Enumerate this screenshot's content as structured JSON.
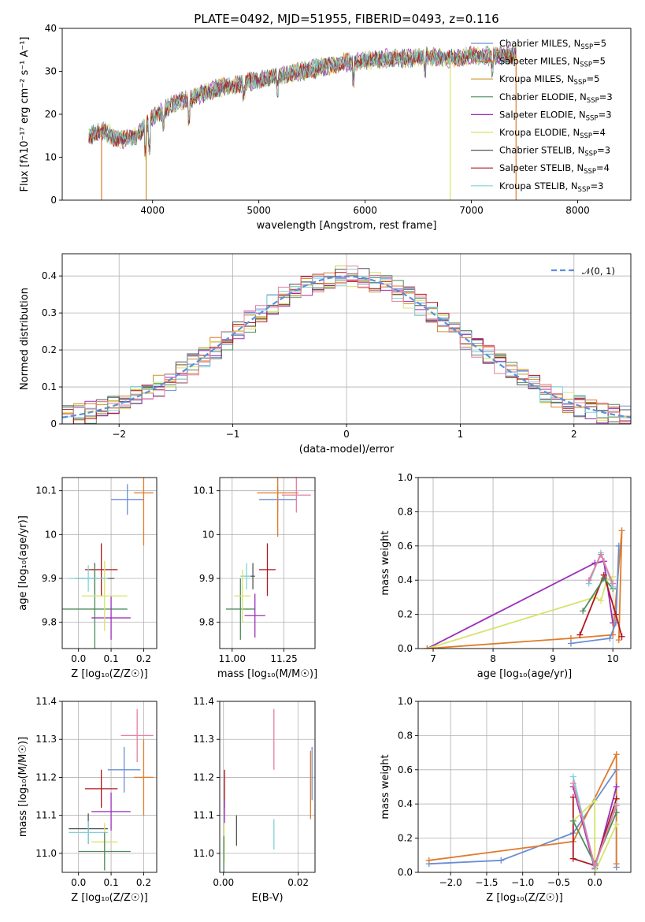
{
  "title": "PLATE=0492, MJD=51955, FIBERID=0493, z=0.116",
  "colors": {
    "Chabrier MILES": "#6a8fd6",
    "Salpeter MILES": "#e07b2a",
    "Kroupa MILES": "#c9942a",
    "Chabrier ELODIE": "#4f8c5c",
    "Salpeter ELODIE": "#9b2fb8",
    "Kroupa ELODIE": "#d7e36a",
    "Chabrier STELIB": "#555555",
    "Salpeter STELIB": "#b0171f",
    "Kroupa STELIB": "#7fd3d6",
    "pink": "#e57fa5"
  },
  "chart_data": [
    {
      "type": "line",
      "id": "spectrum",
      "xlabel": "wavelength [Angstrom, rest frame]",
      "ylabel": "Flux [fλ10⁻¹⁷ erg cm⁻² s⁻¹ A⁻¹]",
      "xlim": [
        3150,
        8500
      ],
      "ylim": [
        0,
        40
      ],
      "xticks": [
        4000,
        5000,
        6000,
        7000,
        8000
      ],
      "yticks": [
        0,
        10,
        20,
        30,
        40
      ],
      "legend": "top-right",
      "legend_entries": [
        {
          "name": "Chabrier MILES",
          "nssp": "5"
        },
        {
          "name": "Salpeter MILES",
          "nssp": "5"
        },
        {
          "name": "Kroupa MILES",
          "nssp": "5"
        },
        {
          "name": "Chabrier ELODIE",
          "nssp": "3"
        },
        {
          "name": "Salpeter ELODIE",
          "nssp": "3"
        },
        {
          "name": "Kroupa ELODIE",
          "nssp": "4"
        },
        {
          "name": "Chabrier STELIB",
          "nssp": "3"
        },
        {
          "name": "Salpeter STELIB",
          "nssp": "4"
        },
        {
          "name": "Kroupa STELIB",
          "nssp": "3"
        }
      ],
      "continuum": [
        [
          3400,
          15
        ],
        [
          3550,
          16
        ],
        [
          3700,
          14
        ],
        [
          3850,
          15
        ],
        [
          3950,
          18
        ],
        [
          4100,
          21
        ],
        [
          4250,
          23
        ],
        [
          4400,
          24
        ],
        [
          4600,
          26
        ],
        [
          4800,
          27
        ],
        [
          5000,
          28
        ],
        [
          5200,
          29
        ],
        [
          5400,
          30
        ],
        [
          5600,
          31
        ],
        [
          5800,
          32
        ],
        [
          6000,
          32.5
        ],
        [
          6200,
          33
        ],
        [
          6400,
          33
        ],
        [
          6600,
          33.5
        ],
        [
          6800,
          33
        ],
        [
          7000,
          33.5
        ],
        [
          7200,
          33.5
        ],
        [
          7400,
          34
        ]
      ],
      "drops": [
        [
          3520,
          0
        ],
        [
          3940,
          0
        ],
        [
          6800,
          0
        ],
        [
          7420,
          0
        ]
      ]
    },
    {
      "type": "histogram",
      "id": "residuals",
      "xlabel": "(data-model)/error",
      "ylabel": "Normed distribution",
      "xlim": [
        -2.5,
        2.5
      ],
      "ylim": [
        0,
        0.46
      ],
      "xticks": [
        -2,
        -1,
        0,
        1,
        2
      ],
      "yticks": [
        0,
        0.1,
        0.2,
        0.3,
        0.4
      ],
      "legend": "top-right",
      "normal_label": "𝒩(0, 1)",
      "bin_width": 0.1
    },
    {
      "type": "scatter",
      "id": "age-vs-z",
      "xlabel": "Z [log₁₀(Z/Z☉)]",
      "ylabel": "age  [log₁₀(age/yr)]",
      "xlim": [
        -0.05,
        0.24
      ],
      "ylim": [
        9.74,
        10.13
      ],
      "xticks": [
        0,
        0.1,
        0.2
      ],
      "xticklabels": [
        "0.0",
        "0.1",
        "0.2"
      ],
      "yticks": [
        9.8,
        9.9,
        10.0,
        10.1
      ],
      "points": [
        {
          "model": "Chabrier MILES",
          "x": 0.15,
          "y": 10.08,
          "xerr": 0.05,
          "yerr": 0.035
        },
        {
          "model": "Salpeter MILES",
          "x": 0.2,
          "y": 10.095,
          "xerr": 0.03,
          "yerr": 0.12
        },
        {
          "model": "Chabrier STELIB",
          "x": 0.05,
          "y": 9.9,
          "xerr": 0.06,
          "yerr": 0.035
        },
        {
          "model": "Salpeter STELIB",
          "x": 0.07,
          "y": 9.92,
          "xerr": 0.05,
          "yerr": 0.06
        },
        {
          "model": "Chabrier ELODIE",
          "x": 0.05,
          "y": 9.83,
          "xerr": 0.1,
          "yerr": 0.1
        },
        {
          "model": "Salpeter ELODIE",
          "x": 0.1,
          "y": 9.81,
          "xerr": 0.06,
          "yerr": 0.05
        },
        {
          "model": "Kroupa ELODIE",
          "x": 0.08,
          "y": 9.86,
          "xerr": 0.07,
          "yerr": 0.08
        },
        {
          "model": "Kroupa STELIB",
          "x": 0.03,
          "y": 9.9,
          "xerr": 0.06,
          "yerr": 0.03
        }
      ]
    },
    {
      "type": "scatter",
      "id": "age-vs-mass",
      "xlabel": "mass [log₁₀(M/M☉)]",
      "ylabel": "",
      "xlim": [
        10.94,
        11.4
      ],
      "ylim": [
        9.74,
        10.13
      ],
      "xticks": [
        11.0,
        11.25
      ],
      "xticklabels": [
        "11.00",
        "11.25"
      ],
      "yticks": [
        9.8,
        9.9,
        10.0,
        10.1
      ],
      "points": [
        {
          "model": "Chabrier MILES",
          "x": 11.22,
          "y": 10.08,
          "xerr": 0.09,
          "yerr": 0.03
        },
        {
          "model": "Salpeter MILES",
          "x": 11.22,
          "y": 10.095,
          "xerr": 0.1,
          "yerr": 0.1
        },
        {
          "model": "pink",
          "x": 11.31,
          "y": 10.09,
          "xerr": 0.07,
          "yerr": 0.04
        },
        {
          "model": "Salpeter STELIB",
          "x": 11.17,
          "y": 9.92,
          "xerr": 0.04,
          "yerr": 0.06
        },
        {
          "model": "Kroupa STELIB",
          "x": 11.07,
          "y": 9.905,
          "xerr": 0.03,
          "yerr": 0.03
        },
        {
          "model": "Chabrier ELODIE",
          "x": 11.04,
          "y": 9.83,
          "xerr": 0.07,
          "yerr": 0.07
        },
        {
          "model": "Salpeter ELODIE",
          "x": 11.11,
          "y": 9.815,
          "xerr": 0.05,
          "yerr": 0.05
        },
        {
          "model": "Kroupa ELODIE",
          "x": 11.05,
          "y": 9.86,
          "xerr": 0.04,
          "yerr": 0.06
        },
        {
          "model": "Chabrier STELIB",
          "x": 11.1,
          "y": 9.905,
          "xerr": 0.01,
          "yerr": 0.03
        }
      ]
    },
    {
      "type": "line",
      "id": "weight-vs-age",
      "xlabel": "age  [log₁₀(age/yr)]",
      "ylabel": "mass weight",
      "xlim": [
        6.75,
        10.3
      ],
      "ylim": [
        0,
        1
      ],
      "xticks": [
        7,
        8,
        9,
        10
      ],
      "yticks": [
        0,
        0.2,
        0.4,
        0.6,
        0.8,
        1.0
      ],
      "yticklabels": [
        "0.0",
        "0.2",
        "0.4",
        "0.6",
        "0.8",
        "1.0"
      ],
      "series": [
        {
          "model": "Salpeter ELODIE",
          "points": [
            [
              6.9,
              0.0
            ],
            [
              9.7,
              0.5
            ],
            [
              9.85,
              0.51
            ],
            [
              10.0,
              0.15
            ]
          ]
        },
        {
          "model": "Kroupa ELODIE",
          "points": [
            [
              6.9,
              0.0
            ],
            [
              9.7,
              0.3
            ],
            [
              9.8,
              0.28
            ],
            [
              9.9,
              0.4
            ],
            [
              10.0,
              0.42
            ]
          ]
        },
        {
          "model": "Salpeter MILES",
          "points": [
            [
              6.9,
              0.0
            ],
            [
              9.3,
              0.06
            ],
            [
              10.0,
              0.08
            ],
            [
              10.15,
              0.69
            ],
            [
              10.1,
              0.05
            ]
          ]
        },
        {
          "model": "Chabrier MILES",
          "points": [
            [
              9.3,
              0.03
            ],
            [
              9.95,
              0.06
            ],
            [
              10.05,
              0.15
            ],
            [
              10.1,
              0.6
            ]
          ]
        },
        {
          "model": "Salpeter STELIB",
          "points": [
            [
              9.45,
              0.08
            ],
            [
              9.85,
              0.43
            ],
            [
              10.05,
              0.2
            ],
            [
              10.15,
              0.07
            ]
          ]
        },
        {
          "model": "Chabrier ELODIE",
          "points": [
            [
              9.5,
              0.22
            ],
            [
              9.85,
              0.41
            ],
            [
              10.0,
              0.35
            ]
          ]
        },
        {
          "model": "Kroupa STELIB",
          "points": [
            [
              9.6,
              0.38
            ],
            [
              9.8,
              0.56
            ],
            [
              10.0,
              0.36
            ]
          ]
        },
        {
          "model": "pink",
          "points": [
            [
              9.6,
              0.4
            ],
            [
              9.8,
              0.55
            ],
            [
              10.0,
              0.38
            ]
          ]
        }
      ]
    },
    {
      "type": "scatter",
      "id": "mass-vs-z",
      "xlabel": "Z [log₁₀(Z/Z☉)]",
      "ylabel": "mass [log₁₀(M/M☉)]",
      "xlim": [
        -0.05,
        0.24
      ],
      "ylim": [
        10.95,
        11.4
      ],
      "xticks": [
        0,
        0.1,
        0.2
      ],
      "xticklabels": [
        "0.0",
        "0.1",
        "0.2"
      ],
      "yticks": [
        11.0,
        11.1,
        11.2,
        11.3,
        11.4
      ],
      "yticklabels": [
        "11.0",
        "11.1",
        "11.2",
        "11.3",
        "11.4"
      ],
      "points": [
        {
          "model": "pink",
          "x": 0.18,
          "y": 11.31,
          "xerr": 0.05,
          "yerr": 0.07
        },
        {
          "model": "Chabrier MILES",
          "x": 0.14,
          "y": 11.22,
          "xerr": 0.05,
          "yerr": 0.06
        },
        {
          "model": "Salpeter MILES",
          "x": 0.2,
          "y": 11.2,
          "xerr": 0.03,
          "yerr": 0.1
        },
        {
          "model": "Salpeter STELIB",
          "x": 0.07,
          "y": 11.17,
          "xerr": 0.05,
          "yerr": 0.05
        },
        {
          "model": "Salpeter ELODIE",
          "x": 0.1,
          "y": 11.11,
          "xerr": 0.06,
          "yerr": 0.05
        },
        {
          "model": "Chabrier STELIB",
          "x": 0.03,
          "y": 11.065,
          "xerr": 0.06,
          "yerr": 0.04
        },
        {
          "model": "Kroupa STELIB",
          "x": 0.03,
          "y": 11.055,
          "xerr": 0.06,
          "yerr": 0.03
        },
        {
          "model": "Kroupa ELODIE",
          "x": 0.08,
          "y": 11.03,
          "xerr": 0.04,
          "yerr": 0.05
        },
        {
          "model": "Chabrier ELODIE",
          "x": 0.08,
          "y": 11.005,
          "xerr": 0.08,
          "yerr": 0.05
        }
      ]
    },
    {
      "type": "scatter",
      "id": "mass-vs-ebv",
      "xlabel": "E(B-V)",
      "ylabel": "",
      "xlim": [
        -0.001,
        0.0245
      ],
      "ylim": [
        10.95,
        11.4
      ],
      "xticks": [
        0,
        0.02
      ],
      "xticklabels": [
        "0.00",
        "0.02"
      ],
      "yticks": [
        11.0,
        11.1,
        11.2,
        11.3,
        11.4
      ],
      "yticklabels": [
        "11.0",
        "11.1",
        "11.2",
        "11.3",
        "11.4"
      ],
      "points": [
        {
          "model": "pink",
          "x": 0.0135,
          "y": 11.3,
          "xerr": 0,
          "yerr": 0.08
        },
        {
          "model": "Chabrier MILES",
          "x": 0.0237,
          "y": 11.21,
          "xerr": 0,
          "yerr": 0.07
        },
        {
          "model": "Salpeter MILES",
          "x": 0.0233,
          "y": 11.18,
          "xerr": 0,
          "yerr": 0.09
        },
        {
          "model": "Salpeter STELIB",
          "x": 0.0003,
          "y": 11.17,
          "xerr": 0,
          "yerr": 0.05
        },
        {
          "model": "Salpeter ELODIE",
          "x": 0.0003,
          "y": 11.11,
          "xerr": 0,
          "yerr": 0.03
        },
        {
          "model": "Chabrier STELIB",
          "x": 0.0035,
          "y": 11.06,
          "xerr": 0,
          "yerr": 0.04
        },
        {
          "model": "Kroupa STELIB",
          "x": 0.0135,
          "y": 11.05,
          "xerr": 0,
          "yerr": 0.04
        },
        {
          "model": "Kroupa ELODIE",
          "x": 0.0002,
          "y": 11.03,
          "xerr": 0,
          "yerr": 0.05
        },
        {
          "model": "Chabrier ELODIE",
          "x": 0.0001,
          "y": 10.995,
          "xerr": 0,
          "yerr": 0.05
        }
      ]
    },
    {
      "type": "line",
      "id": "weight-vs-z",
      "xlabel": "Z [log₁₀(Z/Z☉)]",
      "ylabel": "mass weight",
      "xlim": [
        -2.45,
        0.5
      ],
      "ylim": [
        0,
        1
      ],
      "xticks": [
        -2,
        -1.5,
        -1,
        -0.5,
        0
      ],
      "xticklabels": [
        "−2.0",
        "−1.5",
        "−1.0",
        "−0.5",
        "0.0"
      ],
      "yticks": [
        0,
        0.2,
        0.4,
        0.6,
        0.8,
        1.0
      ],
      "yticklabels": [
        "0.0",
        "0.2",
        "0.4",
        "0.6",
        "0.8",
        "1.0"
      ],
      "series": [
        {
          "model": "Chabrier MILES",
          "points": [
            [
              -2.3,
              0.05
            ],
            [
              -1.3,
              0.07
            ],
            [
              -0.3,
              0.23
            ],
            [
              0.3,
              0.6
            ],
            [
              0.3,
              0.03
            ]
          ]
        },
        {
          "model": "Salpeter MILES",
          "points": [
            [
              -2.3,
              0.07
            ],
            [
              -0.3,
              0.18
            ],
            [
              0.3,
              0.69
            ],
            [
              0.3,
              0.05
            ]
          ]
        },
        {
          "model": "Salpeter ELODIE",
          "points": [
            [
              -0.3,
              0.5
            ],
            [
              0.0,
              0.02
            ],
            [
              0.3,
              0.5
            ]
          ]
        },
        {
          "model": "Kroupa ELODIE",
          "points": [
            [
              -0.3,
              0.3
            ],
            [
              0.0,
              0.42
            ],
            [
              0.0,
              0.0
            ],
            [
              0.3,
              0.28
            ]
          ]
        },
        {
          "model": "Salpeter STELIB",
          "points": [
            [
              -0.3,
              0.44
            ],
            [
              -0.3,
              0.08
            ],
            [
              0.0,
              0.04
            ],
            [
              0.3,
              0.43
            ]
          ]
        },
        {
          "model": "Chabrier ELODIE",
          "points": [
            [
              -0.3,
              0.3
            ],
            [
              0.0,
              0.05
            ],
            [
              0.3,
              0.35
            ]
          ]
        },
        {
          "model": "Kroupa STELIB",
          "points": [
            [
              -0.3,
              0.56
            ],
            [
              0.0,
              0.03
            ],
            [
              0.3,
              0.4
            ]
          ]
        },
        {
          "model": "pink",
          "points": [
            [
              -0.3,
              0.52
            ],
            [
              0.0,
              0.04
            ],
            [
              0.3,
              0.39
            ]
          ]
        }
      ]
    }
  ]
}
